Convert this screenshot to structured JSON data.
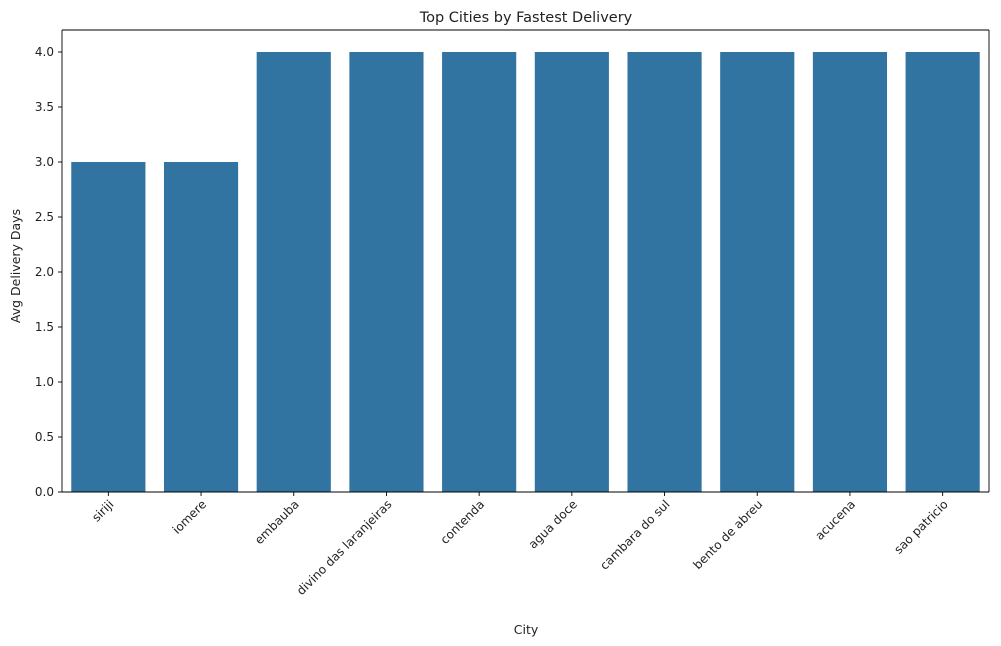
{
  "chart_data": {
    "type": "bar",
    "title": "Top Cities by Fastest Delivery",
    "xlabel": "City",
    "ylabel": "Avg Delivery Days",
    "categories": [
      "siriji",
      "iomere",
      "embauba",
      "divino das laranjeiras",
      "contenda",
      "agua doce",
      "cambara do sul",
      "bento de abreu",
      "acucena",
      "sao patricio"
    ],
    "values": [
      3.0,
      3.0,
      4.0,
      4.0,
      4.0,
      4.0,
      4.0,
      4.0,
      4.0,
      4.0
    ],
    "ylim": [
      0,
      4.2
    ],
    "yticks": [
      "0.0",
      "0.5",
      "1.0",
      "1.5",
      "2.0",
      "2.5",
      "3.0",
      "3.5",
      "4.0"
    ],
    "grid": false,
    "legend": "none",
    "bar_color": "#3274a1"
  }
}
